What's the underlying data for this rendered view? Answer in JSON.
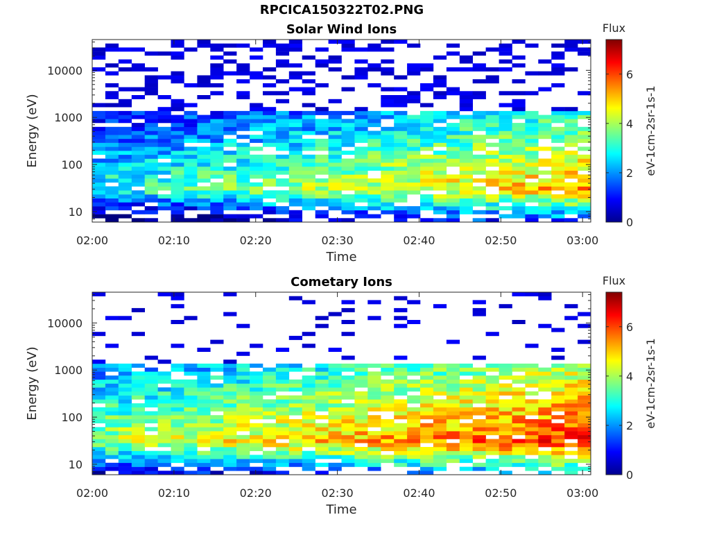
{
  "figure_title": "RPCICA150322T02.PNG",
  "chart_data": [
    {
      "type": "heatmap",
      "title": "Solar Wind Ions",
      "xlabel": "Time",
      "ylabel": "Energy (eV)",
      "x_ticks": [
        "02:00",
        "02:10",
        "02:20",
        "02:30",
        "02:40",
        "02:50",
        "03:00"
      ],
      "y_ticks": [
        "10",
        "100",
        "1000",
        "10000"
      ],
      "y_scale": "log",
      "y_range_ev": [
        6,
        45000
      ],
      "time_range": [
        "02:00",
        "03:01"
      ],
      "colorbar": {
        "title": "Flux",
        "label": "eV-1cm-2sr-1s-1",
        "ticks": [
          "0",
          "2",
          "4",
          "6"
        ],
        "range": [
          0,
          7.4
        ],
        "colormap": "jet"
      },
      "flux_profile": {
        "note": "peak log-flux per time column rises from ~3.0 at 02:00 to ~5.3 at 03:00, peak energy ~30 eV",
        "peak_start": 3.0,
        "peak_end": 5.3,
        "peak_energy_ev": 30
      }
    },
    {
      "type": "heatmap",
      "title": "Cometary Ions",
      "xlabel": "Time",
      "ylabel": "Energy (eV)",
      "x_ticks": [
        "02:00",
        "02:10",
        "02:20",
        "02:30",
        "02:40",
        "02:50",
        "03:00"
      ],
      "y_ticks": [
        "10",
        "100",
        "1000",
        "10000"
      ],
      "y_scale": "log",
      "y_range_ev": [
        6,
        45000
      ],
      "time_range": [
        "02:00",
        "03:01"
      ],
      "colorbar": {
        "title": "Flux",
        "label": "eV-1cm-2sr-1s-1",
        "ticks": [
          "0",
          "2",
          "4",
          "6"
        ],
        "range": [
          0,
          7.4
        ],
        "colormap": "jet"
      },
      "flux_profile": {
        "note": "peak log-flux per time column rises from ~4.0 at 02:00 to ~6.2 at 02:50, peak energy ~30 eV",
        "peak_start": 4.0,
        "peak_end": 6.2,
        "peak_energy_ev": 30
      }
    }
  ]
}
